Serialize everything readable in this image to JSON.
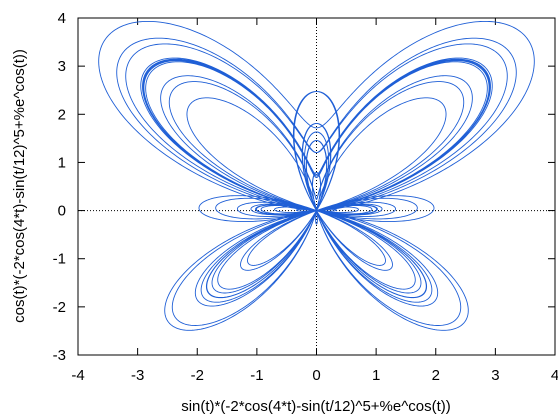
{
  "chart_data": {
    "type": "line",
    "title": "",
    "xlabel": "sin(t)*(-2*cos(4*t)-sin(t/12)^5+%e^cos(t))",
    "ylabel": "cos(t)*(-2*cos(4*t)-sin(t/12)^5+%e^cos(t))",
    "xlim": [
      -4,
      4
    ],
    "ylim": [
      -3,
      4
    ],
    "x_ticks": [
      "-4",
      "-3",
      "-2",
      "-1",
      "0",
      "1",
      "2",
      "3",
      "4"
    ],
    "y_ticks": [
      "-3",
      "-2",
      "-1",
      "0",
      "1",
      "2",
      "3",
      "4"
    ],
    "grid": false,
    "zero_axes": true,
    "series": [
      {
        "parametric": true,
        "x_expr": "sin(t)*(-2*cos(4*t)-sin(t/12)^5+%e^cos(t))",
        "y_expr": "cos(t)*(-2*cos(4*t)-sin(t/12)^5+%e^cos(t))",
        "t_range": [
          0,
          75.4
        ],
        "color": "#1f5fd6"
      }
    ]
  }
}
